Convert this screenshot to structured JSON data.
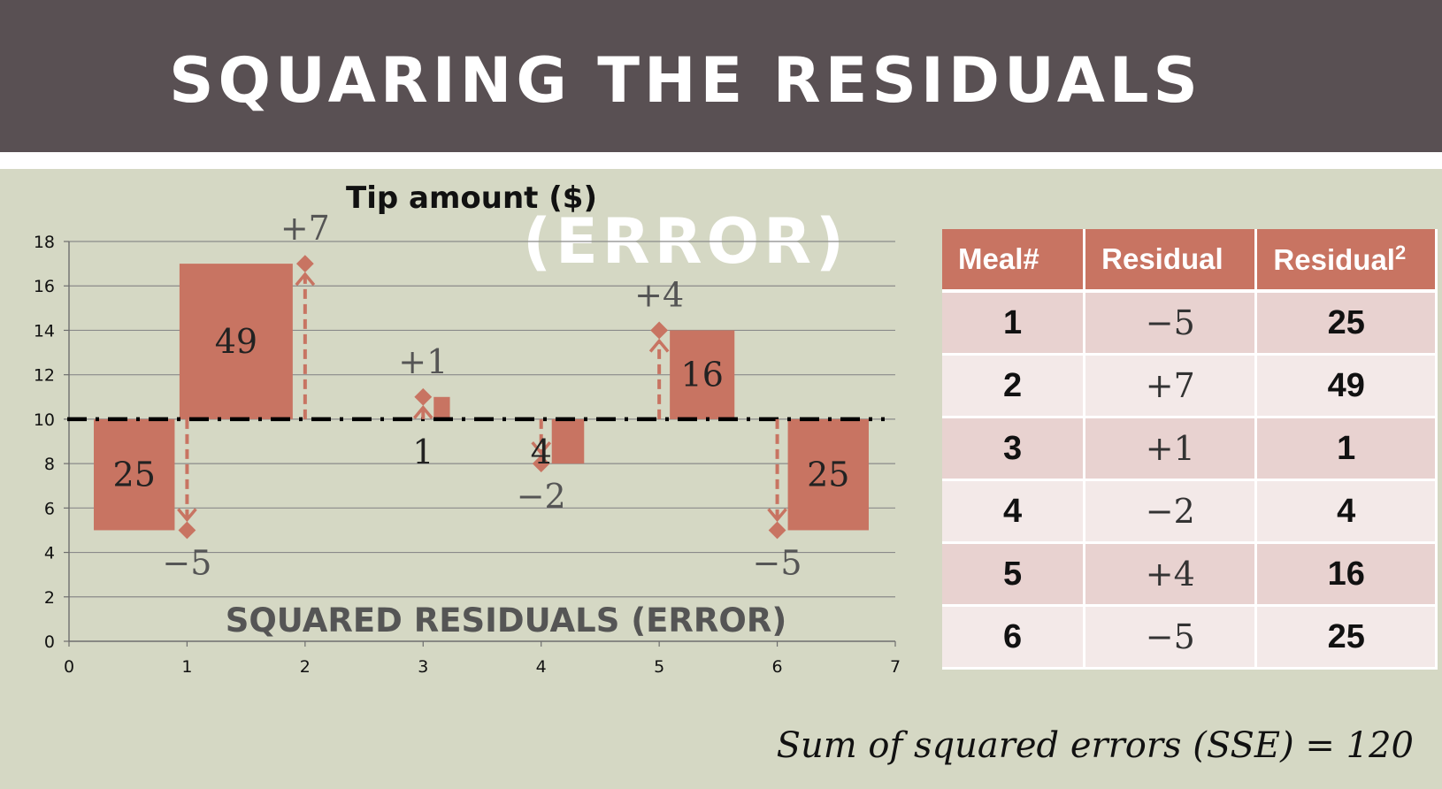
{
  "slide": {
    "title": "SQUARING THE RESIDUALS (ERROR)"
  },
  "chart_data": {
    "type": "scatter",
    "title": "Tip amount ($)",
    "overlay_title": "SQUARED RESIDUALS (ERROR)",
    "xlim": [
      0,
      7
    ],
    "ylim": [
      0,
      18
    ],
    "x_ticks": [
      "0",
      "1",
      "2",
      "3",
      "4",
      "5",
      "6",
      "7"
    ],
    "y_ticks": [
      "0",
      "2",
      "4",
      "6",
      "8",
      "10",
      "12",
      "14",
      "16",
      "18"
    ],
    "grid": true,
    "best_fit_line": {
      "y": 10,
      "style": "dash-dot"
    },
    "points": [
      {
        "x": 1,
        "y": 5,
        "residual": -5,
        "residual_label": "−5",
        "squared": 25,
        "square_label": "25"
      },
      {
        "x": 2,
        "y": 17,
        "residual": 7,
        "residual_label": "+7",
        "squared": 49,
        "square_label": "49"
      },
      {
        "x": 3,
        "y": 11,
        "residual": 1,
        "residual_label": "+1",
        "squared": 1,
        "square_label": "1"
      },
      {
        "x": 4,
        "y": 8,
        "residual": -2,
        "residual_label": "−2",
        "squared": 4,
        "square_label": "4"
      },
      {
        "x": 5,
        "y": 14,
        "residual": 4,
        "residual_label": "+4",
        "squared": 16,
        "square_label": "16"
      },
      {
        "x": 6,
        "y": 5,
        "residual": -5,
        "residual_label": "−5",
        "squared": 25,
        "square_label": "25"
      }
    ],
    "colors": {
      "accent": "#c87462",
      "grid": "#8a8a8a",
      "axis": "#6e6e6e",
      "line": "#000000"
    }
  },
  "table": {
    "headers": {
      "meal": "Meal#",
      "residual": "Residual",
      "residual_sq": "Residual",
      "sq_exp": "2"
    },
    "rows": [
      {
        "meal": "1",
        "residual": "−5",
        "squared": "25"
      },
      {
        "meal": "2",
        "residual": "+7",
        "squared": "49"
      },
      {
        "meal": "3",
        "residual": "+1",
        "squared": "1"
      },
      {
        "meal": "4",
        "residual": "−2",
        "squared": "4"
      },
      {
        "meal": "5",
        "residual": "+4",
        "squared": "16"
      },
      {
        "meal": "6",
        "residual": "−5",
        "squared": "25"
      }
    ]
  },
  "sse": {
    "text": "Sum of squared errors (SSE) = 120"
  }
}
